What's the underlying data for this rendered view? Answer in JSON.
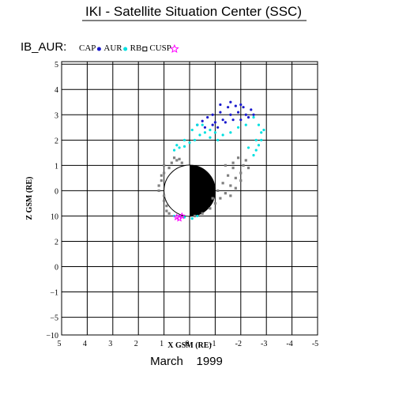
{
  "chart_data": {
    "type": "scatter",
    "title": "IKI - Satellite Situation Center (SSC)",
    "subtitle": "IB_AUR:",
    "xlabel": "X GSM (RE)",
    "ylabel": "Z GSM (RE)",
    "footer": "March    1999",
    "xlim": [
      5,
      -5
    ],
    "ylim": [
      -5.7,
      5.1
    ],
    "xticks": [
      5,
      4,
      3,
      2,
      1,
      0,
      -1,
      -2,
      -3,
      -4,
      -5
    ],
    "yticks": [
      5,
      4,
      3,
      2,
      1,
      0,
      {
        "value": -1,
        "label": "10"
      },
      {
        "value": -2,
        "label": "2"
      },
      {
        "value": -3,
        "label": "0"
      },
      {
        "value": -4,
        "label": "−1"
      },
      {
        "value": -5,
        "label": "−5"
      },
      {
        "value": -5.7,
        "label": "−10"
      }
    ],
    "grid": true,
    "series": [
      {
        "name": "CAP",
        "color": "#1a1acc",
        "marker": "circle",
        "x": [
          -0.3,
          -0.5,
          -0.7,
          -0.9,
          -1.0,
          -1.2,
          -1.3,
          -1.5,
          -1.6,
          -1.8,
          -1.9,
          -2.1,
          -2.2,
          -2.4,
          -2.5,
          -0.6,
          -0.9,
          -1.1,
          -1.4,
          -1.7,
          -2.0,
          -2.3,
          -1.2,
          -1.6,
          -2.0
        ],
        "values": [
          2.6,
          2.75,
          2.9,
          3.0,
          2.7,
          3.1,
          2.8,
          3.3,
          3.0,
          3.35,
          3.1,
          3.3,
          3.0,
          3.2,
          3.0,
          2.5,
          2.6,
          2.5,
          2.7,
          2.8,
          2.8,
          2.9,
          3.4,
          3.5,
          3.4
        ]
      },
      {
        "name": "AUR",
        "color": "#00e0e0",
        "marker": "circle",
        "x": [
          0.6,
          0.4,
          0.2,
          0.0,
          -0.2,
          -0.4,
          -0.6,
          -0.8,
          -1.0,
          -1.3,
          -1.6,
          -1.9,
          -2.2,
          -2.5,
          -2.7,
          -2.8,
          -2.8,
          -2.7,
          -2.6,
          -2.5,
          -2.3,
          -2.6,
          -2.9,
          -0.1,
          -0.3,
          0.2,
          0.5,
          -0.5,
          -0.8,
          -1.1,
          0.4,
          0.2,
          -0.1,
          -0.3,
          0.6
        ],
        "values": [
          1.6,
          1.7,
          1.75,
          1.9,
          2.0,
          2.2,
          2.3,
          2.4,
          2.3,
          2.2,
          2.3,
          2.5,
          2.6,
          2.9,
          2.6,
          2.3,
          2.0,
          1.8,
          1.6,
          1.4,
          1.7,
          2.0,
          2.4,
          2.4,
          2.6,
          2.0,
          1.8,
          2.6,
          2.1,
          2.0,
          -1.0,
          -1.05,
          -1.1,
          -1.0,
          -1.0
        ]
      },
      {
        "name": "RB",
        "color": "#808080",
        "marker": "square",
        "x": [
          1.0,
          1.1,
          1.2,
          1.0,
          0.9,
          0.8,
          1.1,
          1.2,
          1.0,
          0.9,
          0.7,
          0.5,
          0.3,
          -0.2,
          -0.5,
          -0.8,
          -1.0,
          -1.2,
          -1.4,
          -1.6,
          -1.8,
          -2.0,
          -2.1,
          -2.2,
          -1.9,
          -1.7,
          -1.5,
          -1.3,
          -1.1,
          -0.9,
          -1.6,
          -1.8,
          -2.0,
          0.6,
          0.4,
          0.8,
          1.0,
          -1.4,
          -1.7,
          -2.3
        ],
        "values": [
          1.0,
          0.6,
          0.2,
          -0.2,
          -0.6,
          0.9,
          0.4,
          0.0,
          -0.4,
          -0.8,
          1.1,
          1.2,
          1.1,
          -1.0,
          -0.9,
          -0.7,
          -0.5,
          -0.3,
          -0.1,
          0.2,
          0.5,
          0.7,
          1.0,
          1.2,
          1.3,
          0.9,
          0.6,
          0.3,
          0.0,
          -0.3,
          -0.2,
          0.1,
          0.4,
          1.3,
          1.25,
          -0.9,
          0.7,
          1.0,
          1.1,
          0.9
        ]
      },
      {
        "name": "CUSP",
        "color": "#ff00ff",
        "marker": "star",
        "x": [
          0.5,
          0.4,
          0.3
        ],
        "values": [
          -1.05,
          -1.1,
          -1.0
        ]
      }
    ]
  }
}
